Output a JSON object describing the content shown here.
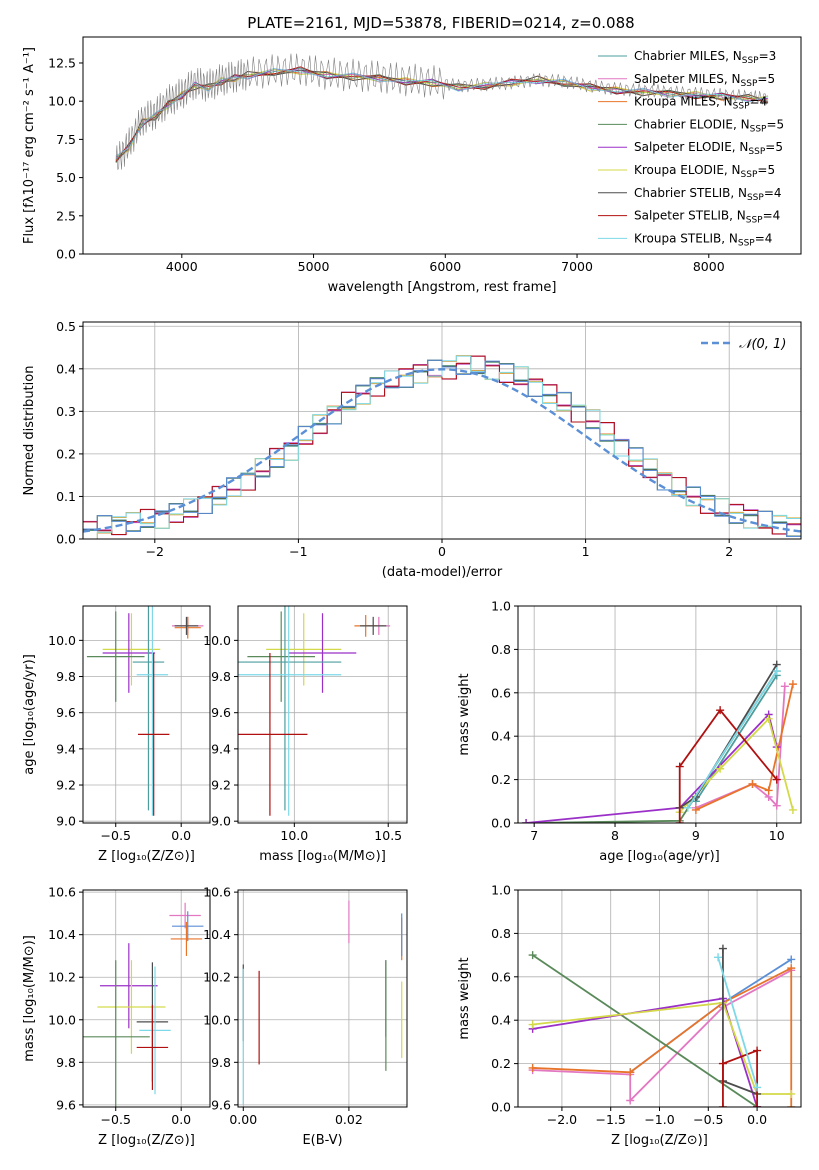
{
  "figure_title": "PLATE=2161, MJD=53878, FIBERID=0214, z=0.088",
  "chart_data": [
    {
      "id": "spectrum",
      "type": "line",
      "title": "PLATE=2161, MJD=53878, FIBERID=0214, z=0.088",
      "xlabel": "wavelength [Angstrom, rest frame]",
      "ylabel": "Flux [fλ10⁻¹⁷ erg cm⁻² s⁻¹ A⁻¹]",
      "xlim": [
        3250,
        8700
      ],
      "ylim": [
        0,
        14.2
      ],
      "xticks": [
        4000,
        5000,
        6000,
        7000,
        8000
      ],
      "yticks": [
        0.0,
        2.5,
        5.0,
        7.5,
        10.0,
        12.5
      ],
      "grid": false,
      "legend_position": "right",
      "data_spectrum": {
        "name": "data",
        "color": "#808080",
        "x": [
          3500,
          3600,
          3700,
          3800,
          3900,
          4000,
          4100,
          4200,
          4300,
          4400,
          4500,
          4700,
          4900,
          5100,
          5300,
          5500,
          5700,
          5900,
          6100,
          6300,
          6500,
          6700,
          6900,
          7100,
          7300,
          7500,
          7700,
          7900,
          8100,
          8300,
          8450
        ],
        "y": [
          6.0,
          7.2,
          8.8,
          9.2,
          10.0,
          10.5,
          11.2,
          11.0,
          11.4,
          11.6,
          11.8,
          12.0,
          12.1,
          11.8,
          11.7,
          11.6,
          11.4,
          11.3,
          11.0,
          11.1,
          11.2,
          11.4,
          11.3,
          11.0,
          10.8,
          10.7,
          10.6,
          10.5,
          10.4,
          10.3,
          10.2
        ]
      },
      "models": {
        "x": [
          3500,
          3600,
          3700,
          3800,
          3900,
          4000,
          4100,
          4200,
          4300,
          4400,
          4500,
          4700,
          4900,
          5100,
          5300,
          5500,
          5700,
          5900,
          6100,
          6300,
          6500,
          6700,
          6900,
          7100,
          7300,
          7500,
          7700,
          7900,
          8100,
          8300,
          8450
        ],
        "y": [
          6.2,
          7.0,
          8.6,
          9.0,
          9.8,
          10.4,
          11.0,
          10.9,
          11.3,
          11.5,
          11.7,
          11.9,
          12.0,
          11.7,
          11.6,
          11.5,
          11.3,
          11.2,
          10.9,
          11.0,
          11.2,
          11.4,
          11.2,
          10.9,
          10.7,
          10.6,
          10.5,
          10.4,
          10.3,
          10.2,
          10.1
        ]
      },
      "series": [
        {
          "name": "Chabrier MILES, N_SSP=3",
          "color": "#4c9e9e"
        },
        {
          "name": "Salpeter MILES, N_SSP=5",
          "color": "#e377c2"
        },
        {
          "name": "Kroupa MILES, N_SSP=4",
          "color": "#e8742a"
        },
        {
          "name": "Chabrier ELODIE, N_SSP=5",
          "color": "#5a8a5a"
        },
        {
          "name": "Salpeter ELODIE, N_SSP=5",
          "color": "#9b30c8"
        },
        {
          "name": "Kroupa ELODIE, N_SSP=5",
          "color": "#d4d94a"
        },
        {
          "name": "Chabrier STELIB, N_SSP=4",
          "color": "#4d4d4d"
        },
        {
          "name": "Salpeter STELIB, N_SSP=4",
          "color": "#b01010"
        },
        {
          "name": "Kroupa STELIB, N_SSP=4",
          "color": "#7dd8e8"
        }
      ],
      "legend_entries": [
        {
          "model": "Chabrier MILES, N",
          "sub": "SSP",
          "suffix": "=3"
        },
        {
          "model": "Salpeter MILES, N",
          "sub": "SSP",
          "suffix": "=5"
        },
        {
          "model": "Kroupa MILES, N",
          "sub": "SSP",
          "suffix": "=4"
        },
        {
          "model": "Chabrier ELODIE, N",
          "sub": "SSP",
          "suffix": "=5"
        },
        {
          "model": "Salpeter ELODIE, N",
          "sub": "SSP",
          "suffix": "=5"
        },
        {
          "model": "Kroupa ELODIE, N",
          "sub": "SSP",
          "suffix": "=5"
        },
        {
          "model": "Chabrier STELIB, N",
          "sub": "SSP",
          "suffix": "=4"
        },
        {
          "model": "Salpeter STELIB, N",
          "sub": "SSP",
          "suffix": "=4"
        },
        {
          "model": "Kroupa STELIB, N",
          "sub": "SSP",
          "suffix": "=4"
        }
      ]
    },
    {
      "id": "residuals",
      "type": "line",
      "xlabel": "(data-model)/error",
      "ylabel": "Normed distribution",
      "xlim": [
        -2.5,
        2.5
      ],
      "ylim": [
        0,
        0.51
      ],
      "xticks": [
        -2,
        -1,
        0,
        1,
        2
      ],
      "yticks": [
        0.0,
        0.1,
        0.2,
        0.3,
        0.4,
        0.5
      ],
      "grid": true,
      "legend_position": "top-right",
      "gaussian": {
        "name": "𝒩(0, 1)",
        "mean": 0,
        "sigma": 1,
        "color": "#5b8fd6"
      },
      "histogram_edges": [
        -2.5,
        -2.4,
        -2.3,
        -2.2,
        -2.1,
        -2.0,
        -1.9,
        -1.8,
        -1.7,
        -1.6,
        -1.5,
        -1.4,
        -1.3,
        -1.2,
        -1.1,
        -1.0,
        -0.9,
        -0.8,
        -0.7,
        -0.6,
        -0.5,
        -0.4,
        -0.3,
        -0.2,
        -0.1,
        0.0,
        0.1,
        0.2,
        0.3,
        0.4,
        0.5,
        0.6,
        0.7,
        0.8,
        0.9,
        1.0,
        1.1,
        1.2,
        1.3,
        1.4,
        1.5,
        1.6,
        1.7,
        1.8,
        1.9,
        2.0,
        2.1,
        2.2,
        2.3,
        2.4,
        2.5
      ],
      "histogram_base": [
        0.02,
        0.03,
        0.035,
        0.04,
        0.045,
        0.05,
        0.06,
        0.07,
        0.085,
        0.1,
        0.12,
        0.14,
        0.165,
        0.19,
        0.21,
        0.24,
        0.27,
        0.295,
        0.32,
        0.34,
        0.36,
        0.37,
        0.38,
        0.39,
        0.395,
        0.4,
        0.41,
        0.405,
        0.4,
        0.39,
        0.38,
        0.36,
        0.34,
        0.32,
        0.3,
        0.28,
        0.25,
        0.22,
        0.19,
        0.165,
        0.14,
        0.12,
        0.1,
        0.085,
        0.07,
        0.06,
        0.05,
        0.04,
        0.035,
        0.03
      ],
      "histogram_colors": [
        "#4c9e9e",
        "#e377c2",
        "#e8742a",
        "#5a8a5a",
        "#9b30c8",
        "#d4d94a",
        "#4d4d4d",
        "#b01010",
        "#7dd8e8",
        "#5b8fd6"
      ]
    },
    {
      "id": "age_vs_z",
      "type": "scatter",
      "xlabel": "Z [log₁₀(Z/Z⊙)]",
      "ylabel": "age  [log₁₀(age/yr)]",
      "xlim": [
        -0.75,
        0.22
      ],
      "ylim": [
        8.99,
        10.19
      ],
      "xticks": [
        -0.5,
        0.0
      ],
      "yticks": [
        9.0,
        9.2,
        9.4,
        9.6,
        9.8,
        10.0
      ],
      "grid": true,
      "points": [
        {
          "x": 0.05,
          "y": 10.08,
          "xerr": 0.12,
          "yerr": 0.05,
          "color": "#e377c2"
        },
        {
          "x": 0.05,
          "y": 10.07,
          "xerr": 0.1,
          "yerr": 0.06,
          "color": "#e8742a"
        },
        {
          "x": 0.04,
          "y": 10.08,
          "xerr": 0.09,
          "yerr": 0.05,
          "color": "#4d4d4d"
        },
        {
          "x": -0.38,
          "y": 9.95,
          "xerr": 0.22,
          "yerr": 0.2,
          "color": "#d4d94a"
        },
        {
          "x": -0.4,
          "y": 9.93,
          "xerr": 0.2,
          "yerr": 0.22,
          "color": "#9b30c8"
        },
        {
          "x": -0.5,
          "y": 9.91,
          "xerr": 0.22,
          "yerr": 0.25,
          "color": "#5a8a5a"
        },
        {
          "x": -0.25,
          "y": 9.88,
          "xerr": 0.12,
          "yerr": 0.82,
          "color": "#4c9e9e"
        },
        {
          "x": -0.22,
          "y": 9.81,
          "xerr": 0.12,
          "yerr": 0.78,
          "color": "#7dd8e8"
        },
        {
          "x": -0.21,
          "y": 9.48,
          "xerr": 0.12,
          "yerr": 0.45,
          "color": "#b01010"
        }
      ]
    },
    {
      "id": "age_vs_mass",
      "type": "scatter",
      "xlabel": "mass [log₁₀(M/M⊙)]",
      "ylim": [
        8.99,
        10.19
      ],
      "xlim": [
        9.7,
        10.6
      ],
      "xticks": [
        10.0,
        10.5
      ],
      "yticks": [
        9.0,
        9.2,
        9.4,
        9.6,
        9.8,
        10.0
      ],
      "grid": true,
      "points": [
        {
          "x": 10.45,
          "y": 10.08,
          "xerr": 0.06,
          "yerr": 0.05,
          "color": "#e377c2"
        },
        {
          "x": 10.38,
          "y": 10.08,
          "xerr": 0.06,
          "yerr": 0.06,
          "color": "#e8742a"
        },
        {
          "x": 10.42,
          "y": 10.08,
          "xerr": 0.07,
          "yerr": 0.05,
          "color": "#4d4d4d"
        },
        {
          "x": 10.05,
          "y": 9.95,
          "xerr": 0.2,
          "yerr": 0.2,
          "color": "#d4d94a"
        },
        {
          "x": 10.15,
          "y": 9.93,
          "xerr": 0.18,
          "yerr": 0.22,
          "color": "#9b30c8"
        },
        {
          "x": 9.93,
          "y": 9.91,
          "xerr": 0.18,
          "yerr": 0.25,
          "color": "#5a8a5a"
        },
        {
          "x": 9.95,
          "y": 9.88,
          "xerr": 0.3,
          "yerr": 0.82,
          "color": "#4c9e9e"
        },
        {
          "x": 9.97,
          "y": 9.81,
          "xerr": 0.28,
          "yerr": 0.78,
          "color": "#7dd8e8"
        },
        {
          "x": 9.87,
          "y": 9.48,
          "xerr": 0.2,
          "yerr": 0.45,
          "color": "#b01010"
        }
      ]
    },
    {
      "id": "weight_vs_age",
      "type": "line",
      "xlabel": "age  [log₁₀(age/yr)]",
      "ylabel": "mass weight",
      "xlim": [
        6.8,
        10.3
      ],
      "ylim": [
        0,
        1.0
      ],
      "xticks": [
        7,
        8,
        9,
        10
      ],
      "yticks": [
        0.0,
        0.2,
        0.4,
        0.6,
        0.8,
        1.0
      ],
      "grid": true,
      "series": [
        {
          "name": "Chabrier MILES",
          "color": "#4c9e9e",
          "x": [
            9.0,
            10.0
          ],
          "y": [
            0.1,
            0.68
          ]
        },
        {
          "name": "Salpeter MILES",
          "color": "#e377c2",
          "x": [
            9.0,
            9.7,
            9.9,
            10.0,
            10.1
          ],
          "y": [
            0.07,
            0.18,
            0.12,
            0.08,
            0.63
          ]
        },
        {
          "name": "Kroupa MILES",
          "color": "#e8742a",
          "x": [
            9.0,
            9.7,
            9.9,
            10.2
          ],
          "y": [
            0.06,
            0.18,
            0.15,
            0.64
          ]
        },
        {
          "name": "Chabrier ELODIE",
          "color": "#5a8a5a",
          "x": [
            6.9,
            8.8,
            10.0
          ],
          "y": [
            0.0,
            0.01,
            0.7
          ]
        },
        {
          "name": "Salpeter ELODIE",
          "color": "#9b30c8",
          "x": [
            6.9,
            8.8,
            9.9,
            10.0
          ],
          "y": [
            0.0,
            0.07,
            0.5,
            0.35
          ]
        },
        {
          "name": "Kroupa ELODIE",
          "color": "#d4d94a",
          "x": [
            8.8,
            9.3,
            9.9,
            10.2
          ],
          "y": [
            0.05,
            0.25,
            0.48,
            0.06
          ]
        },
        {
          "name": "Chabrier STELIB",
          "color": "#4d4d4d",
          "x": [
            8.8,
            9.0,
            10.0
          ],
          "y": [
            0.07,
            0.12,
            0.73
          ]
        },
        {
          "name": "Salpeter STELIB",
          "color": "#b01010",
          "x": [
            8.8,
            8.8,
            9.3,
            10.0
          ],
          "y": [
            0.0,
            0.26,
            0.52,
            0.2
          ]
        },
        {
          "name": "Kroupa STELIB",
          "color": "#7dd8e8",
          "x": [
            8.9,
            10.0
          ],
          "y": [
            0.07,
            0.7
          ]
        }
      ]
    },
    {
      "id": "mass_vs_z",
      "type": "scatter",
      "xlabel": "Z [log₁₀(Z/Z⊙)]",
      "ylabel": "mass [log₁₀(M/M⊙)]",
      "xlim": [
        -0.75,
        0.22
      ],
      "ylim": [
        9.59,
        10.61
      ],
      "xticks": [
        -0.5,
        0.0
      ],
      "yticks": [
        9.6,
        9.8,
        10.0,
        10.2,
        10.4,
        10.6
      ],
      "grid": true,
      "points": [
        {
          "x": 0.03,
          "y": 10.49,
          "xerr": 0.12,
          "yerr": 0.06,
          "color": "#e377c2"
        },
        {
          "x": 0.05,
          "y": 10.44,
          "xerr": 0.12,
          "yerr": 0.07,
          "color": "#5b8fd6"
        },
        {
          "x": 0.04,
          "y": 10.38,
          "xerr": 0.12,
          "yerr": 0.08,
          "color": "#e8742a"
        },
        {
          "x": -0.4,
          "y": 10.16,
          "xerr": 0.22,
          "yerr": 0.2,
          "color": "#9b30c8"
        },
        {
          "x": -0.38,
          "y": 10.06,
          "xerr": 0.26,
          "yerr": 0.22,
          "color": "#d4d94a"
        },
        {
          "x": -0.22,
          "y": 9.99,
          "xerr": 0.12,
          "yerr": 0.28,
          "color": "#4d4d4d"
        },
        {
          "x": -0.2,
          "y": 9.95,
          "xerr": 0.12,
          "yerr": 0.3,
          "color": "#7dd8e8"
        },
        {
          "x": -0.5,
          "y": 9.92,
          "xerr": 0.26,
          "yerr": 0.36,
          "color": "#5a8a5a"
        },
        {
          "x": -0.22,
          "y": 9.87,
          "xerr": 0.12,
          "yerr": 0.2,
          "color": "#b01010"
        }
      ]
    },
    {
      "id": "mass_vs_ebv",
      "type": "scatter",
      "xlabel": "E(B-V)",
      "xlim": [
        -0.001,
        0.031
      ],
      "ylim": [
        9.59,
        10.61
      ],
      "xticks": [
        0.0,
        0.02
      ],
      "yticks": [
        9.6,
        9.8,
        10.0,
        10.2,
        10.4,
        10.6
      ],
      "grid": true,
      "points": [
        {
          "x": 0.0,
          "y": 10.08,
          "yerr": 0.18,
          "color": "#4d4d4d"
        },
        {
          "x": 0.0,
          "y": 9.92,
          "yerr": 0.32,
          "color": "#7dd8e8"
        },
        {
          "x": 0.003,
          "y": 10.01,
          "yerr": 0.22,
          "color": "#b01010"
        },
        {
          "x": 0.02,
          "y": 10.46,
          "yerr": 0.1,
          "color": "#e377c2"
        },
        {
          "x": 0.027,
          "y": 10.1,
          "yerr": 0.18,
          "color": "#9b30c8"
        },
        {
          "x": 0.027,
          "y": 10.02,
          "yerr": 0.26,
          "color": "#5a8a5a"
        },
        {
          "x": 0.03,
          "y": 10.38,
          "yerr": 0.1,
          "color": "#e8742a"
        },
        {
          "x": 0.03,
          "y": 10.4,
          "yerr": 0.1,
          "color": "#5b8fd6"
        },
        {
          "x": 0.03,
          "y": 10.0,
          "yerr": 0.18,
          "color": "#d4d94a"
        }
      ]
    },
    {
      "id": "weight_vs_z",
      "type": "line",
      "xlabel": "Z [log₁₀(Z/Z⊙)]",
      "ylabel": "mass weight",
      "xlim": [
        -2.45,
        0.45
      ],
      "ylim": [
        0,
        1.0
      ],
      "xticks": [
        -2.0,
        -1.5,
        -1.0,
        -0.5,
        0.0
      ],
      "yticks": [
        0.0,
        0.2,
        0.4,
        0.6,
        0.8,
        1.0
      ],
      "grid": true,
      "series": [
        {
          "name": "Chabrier MILES",
          "color": "#5b8fd6",
          "x": [
            -1.3,
            -0.35,
            0.35
          ],
          "y": [
            0.16,
            0.48,
            0.68
          ]
        },
        {
          "name": "Salpeter MILES",
          "color": "#e377c2",
          "x": [
            -2.3,
            -1.3,
            -1.3,
            -0.35,
            0.35
          ],
          "y": [
            0.17,
            0.15,
            0.03,
            0.46,
            0.63
          ]
        },
        {
          "name": "Kroupa MILES",
          "color": "#e8742a",
          "x": [
            -2.3,
            -1.3,
            -0.35,
            0.35,
            0.35
          ],
          "y": [
            0.18,
            0.16,
            0.48,
            0.64,
            0.0
          ]
        },
        {
          "name": "Chabrier ELODIE",
          "color": "#5a8a5a",
          "x": [
            -2.3,
            0.0
          ],
          "y": [
            0.7,
            0.0
          ]
        },
        {
          "name": "Salpeter ELODIE",
          "color": "#9b30c8",
          "x": [
            -2.3,
            -0.35,
            0.0
          ],
          "y": [
            0.36,
            0.5,
            0.0
          ]
        },
        {
          "name": "Kroupa ELODIE",
          "color": "#d4d94a",
          "x": [
            -2.3,
            -0.35,
            0.0,
            0.35
          ],
          "y": [
            0.38,
            0.48,
            0.06,
            0.06
          ]
        },
        {
          "name": "Chabrier STELIB",
          "color": "#4d4d4d",
          "x": [
            -0.35,
            -0.35,
            0.0
          ],
          "y": [
            0.73,
            0.12,
            0.06
          ]
        },
        {
          "name": "Salpeter STELIB",
          "color": "#b01010",
          "x": [
            -0.35,
            -0.35,
            0.0,
            0.0
          ],
          "y": [
            0.0,
            0.2,
            0.26,
            0.0
          ]
        },
        {
          "name": "Kroupa STELIB",
          "color": "#7dd8e8",
          "x": [
            -0.4,
            0.0
          ],
          "y": [
            0.69,
            0.09
          ]
        }
      ]
    }
  ]
}
